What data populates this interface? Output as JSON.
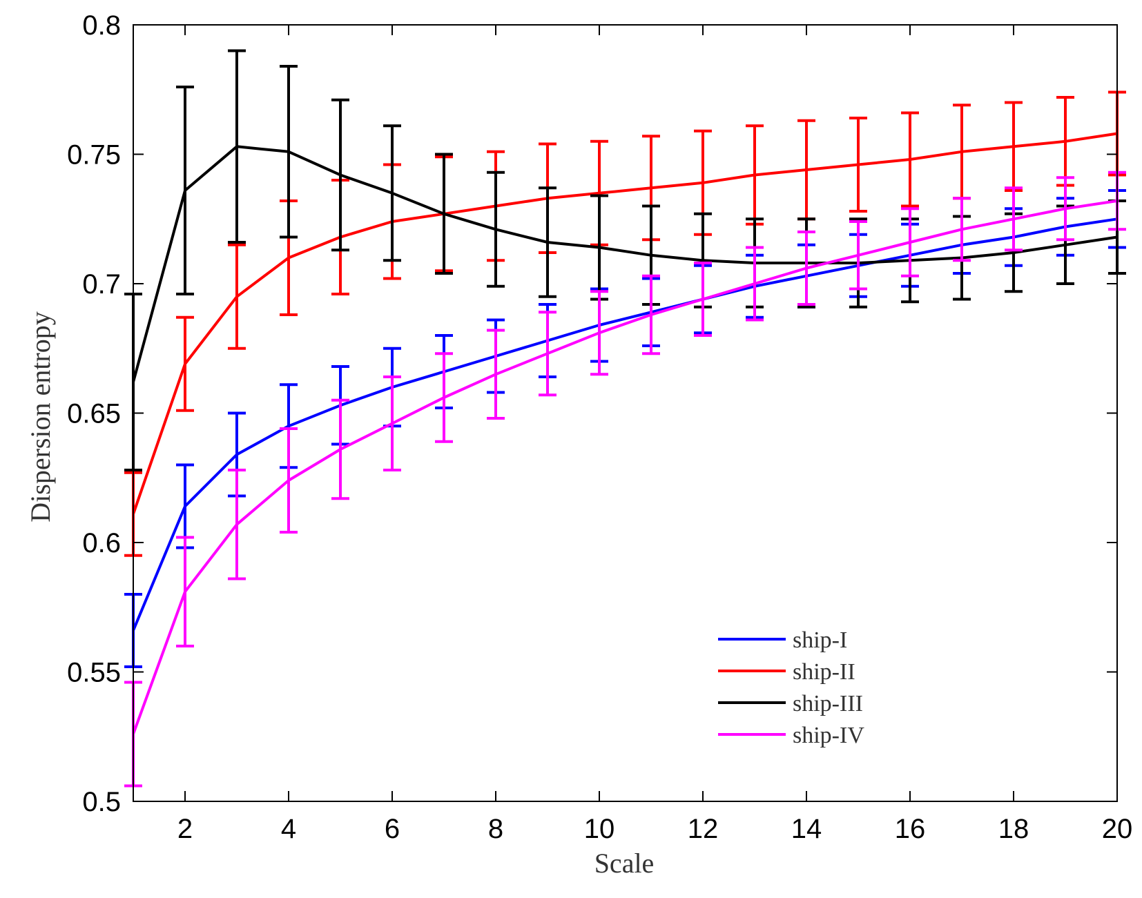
{
  "chart_data": {
    "type": "line",
    "title": "",
    "xlabel": "Scale",
    "ylabel": "Dispersion entropy",
    "xlim": [
      1,
      20
    ],
    "ylim": [
      0.5,
      0.8
    ],
    "grid": false,
    "legend_position": "bottom-right",
    "x": [
      1,
      2,
      3,
      4,
      5,
      6,
      7,
      8,
      9,
      10,
      11,
      12,
      13,
      14,
      15,
      16,
      17,
      18,
      19,
      20
    ],
    "x_ticks": [
      2,
      4,
      6,
      8,
      10,
      12,
      14,
      16,
      18,
      20
    ],
    "x_tick_labels": [
      "2",
      "4",
      "6",
      "8",
      "10",
      "12",
      "14",
      "16",
      "18",
      "20"
    ],
    "y_ticks": [
      0.5,
      0.55,
      0.6,
      0.65,
      0.7,
      0.75,
      0.8
    ],
    "y_tick_labels": [
      "0.5",
      "0.55",
      "0.6",
      "0.65",
      "0.7",
      "0.75",
      "0.8"
    ],
    "series": [
      {
        "name": "ship-I",
        "color": "#0000ff",
        "values": [
          0.566,
          0.614,
          0.634,
          0.645,
          0.653,
          0.66,
          0.666,
          0.672,
          0.678,
          0.684,
          0.689,
          0.694,
          0.699,
          0.703,
          0.707,
          0.711,
          0.715,
          0.718,
          0.722,
          0.725
        ],
        "errors": [
          0.014,
          0.016,
          0.016,
          0.016,
          0.015,
          0.015,
          0.014,
          0.014,
          0.014,
          0.014,
          0.013,
          0.013,
          0.012,
          0.012,
          0.012,
          0.012,
          0.011,
          0.011,
          0.011,
          0.011
        ]
      },
      {
        "name": "ship-II",
        "color": "#ff0000",
        "values": [
          0.611,
          0.669,
          0.695,
          0.71,
          0.718,
          0.724,
          0.727,
          0.73,
          0.733,
          0.735,
          0.737,
          0.739,
          0.742,
          0.744,
          0.746,
          0.748,
          0.751,
          0.753,
          0.755,
          0.758
        ],
        "errors": [
          0.016,
          0.018,
          0.02,
          0.022,
          0.022,
          0.022,
          0.022,
          0.021,
          0.021,
          0.02,
          0.02,
          0.02,
          0.019,
          0.019,
          0.018,
          0.018,
          0.018,
          0.017,
          0.017,
          0.016
        ]
      },
      {
        "name": "ship-III",
        "color": "#000000",
        "values": [
          0.662,
          0.736,
          0.753,
          0.751,
          0.742,
          0.735,
          0.727,
          0.721,
          0.716,
          0.714,
          0.711,
          0.709,
          0.708,
          0.708,
          0.708,
          0.709,
          0.71,
          0.712,
          0.715,
          0.718
        ],
        "errors": [
          0.034,
          0.04,
          0.037,
          0.033,
          0.029,
          0.026,
          0.023,
          0.022,
          0.021,
          0.02,
          0.019,
          0.018,
          0.017,
          0.017,
          0.017,
          0.016,
          0.016,
          0.015,
          0.015,
          0.014
        ]
      },
      {
        "name": "ship-IV",
        "color": "#ff00ff",
        "values": [
          0.526,
          0.581,
          0.607,
          0.624,
          0.636,
          0.646,
          0.656,
          0.665,
          0.673,
          0.681,
          0.688,
          0.694,
          0.7,
          0.706,
          0.711,
          0.716,
          0.721,
          0.725,
          0.729,
          0.732
        ],
        "errors": [
          0.02,
          0.021,
          0.021,
          0.02,
          0.019,
          0.018,
          0.017,
          0.017,
          0.016,
          0.016,
          0.015,
          0.014,
          0.014,
          0.014,
          0.013,
          0.013,
          0.012,
          0.012,
          0.012,
          0.011
        ]
      }
    ]
  }
}
